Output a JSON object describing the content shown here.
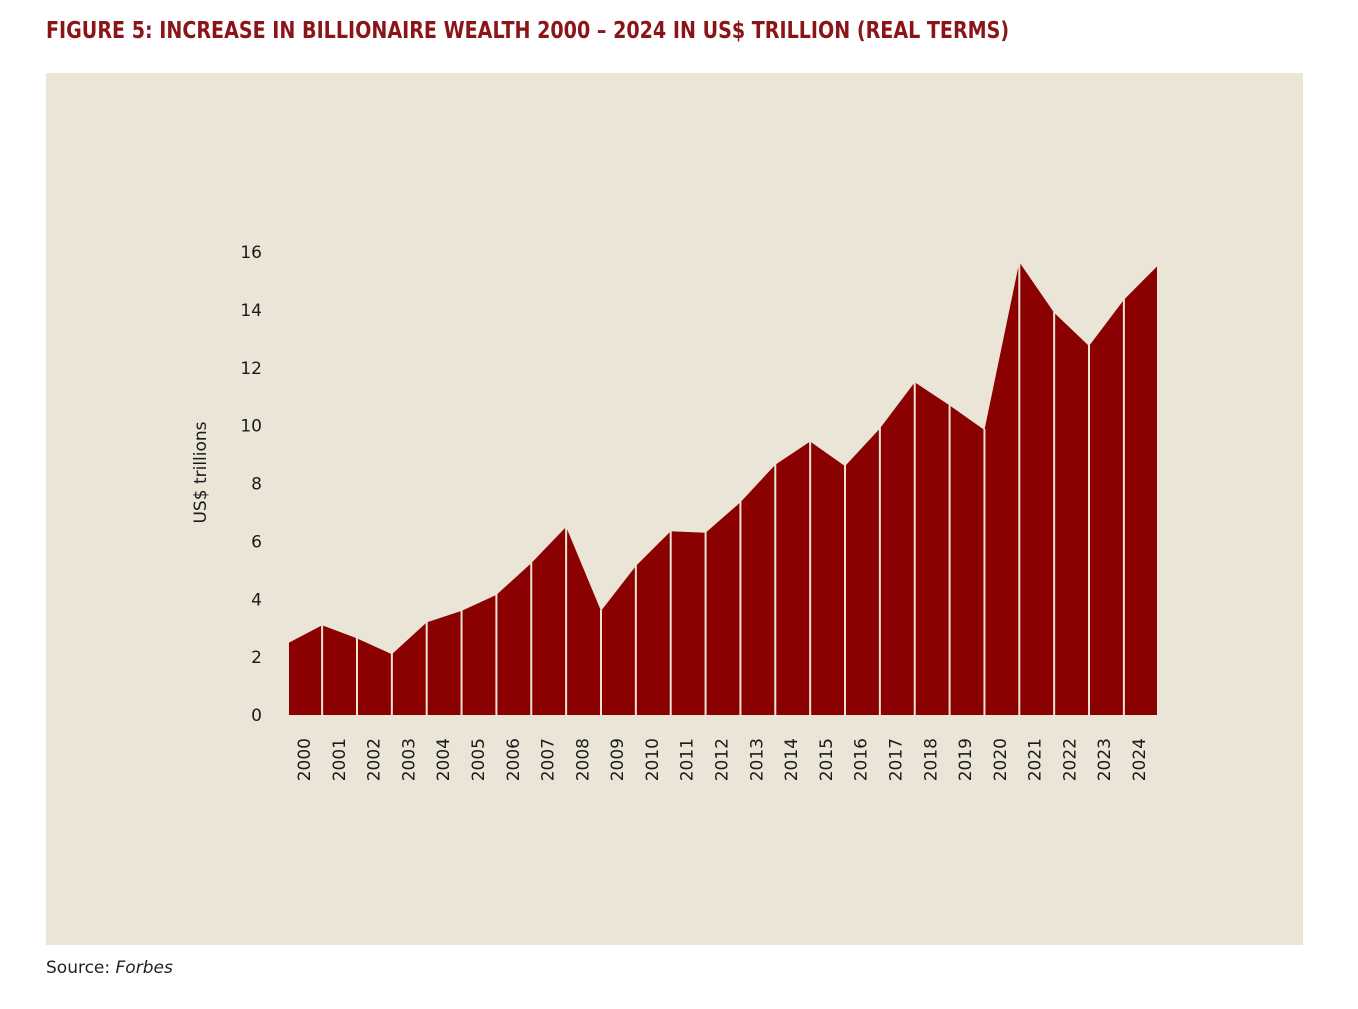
{
  "figure": {
    "title": "FIGURE 5: INCREASE IN BILLIONAIRE WEALTH 2000 – 2024 IN US$ TRILLION (REAL TERMS)",
    "source_label": "Source:",
    "source_name": "Forbes"
  },
  "colors": {
    "title": "#8b1419",
    "area_fill": "#8b0000",
    "panel_background": "#ebe5d7",
    "separator": "#ebe5d7"
  },
  "chart_data": {
    "type": "area",
    "title": "FIGURE 5: INCREASE IN BILLIONAIRE WEALTH 2000 – 2024 IN US$ TRILLION (REAL TERMS)",
    "xlabel": "",
    "ylabel": "US$ trillions",
    "ylim": [
      0,
      16
    ],
    "yticks": [
      0,
      2,
      4,
      6,
      8,
      10,
      12,
      14,
      16
    ],
    "grid": false,
    "categories": [
      "2000",
      "2001",
      "2002",
      "2003",
      "2004",
      "2005",
      "2006",
      "2007",
      "2008",
      "2009",
      "2010",
      "2011",
      "2012",
      "2013",
      "2014",
      "2015",
      "2016",
      "2017",
      "2018",
      "2019",
      "2020",
      "2021",
      "2022",
      "2023",
      "2024"
    ],
    "series": [
      {
        "name": "Billionaire wealth",
        "x": [
          0.0,
          0.95,
          1.95,
          2.95,
          3.95,
          4.95,
          5.95,
          6.95,
          7.95,
          8.95,
          9.95,
          10.95,
          11.95,
          12.95,
          13.95,
          14.95,
          15.95,
          16.95,
          17.95,
          18.95,
          19.95,
          20.95,
          21.95,
          22.95,
          23.95,
          24.9
        ],
        "values": [
          2.5,
          3.1,
          2.65,
          2.1,
          3.2,
          3.6,
          4.15,
          5.25,
          6.5,
          3.6,
          5.15,
          6.35,
          6.3,
          7.35,
          8.65,
          9.45,
          8.6,
          9.9,
          11.5,
          10.7,
          9.85,
          15.65,
          13.9,
          12.75,
          14.35,
          15.5
        ],
        "separators_at": [
          0.95,
          1.95,
          2.95,
          3.95,
          4.95,
          5.95,
          6.95,
          7.95,
          8.95,
          9.95,
          10.95,
          11.95,
          12.95,
          13.95,
          14.95,
          15.95,
          16.95,
          17.95,
          18.95,
          19.95,
          20.95,
          21.95,
          22.95,
          23.95
        ]
      }
    ]
  }
}
